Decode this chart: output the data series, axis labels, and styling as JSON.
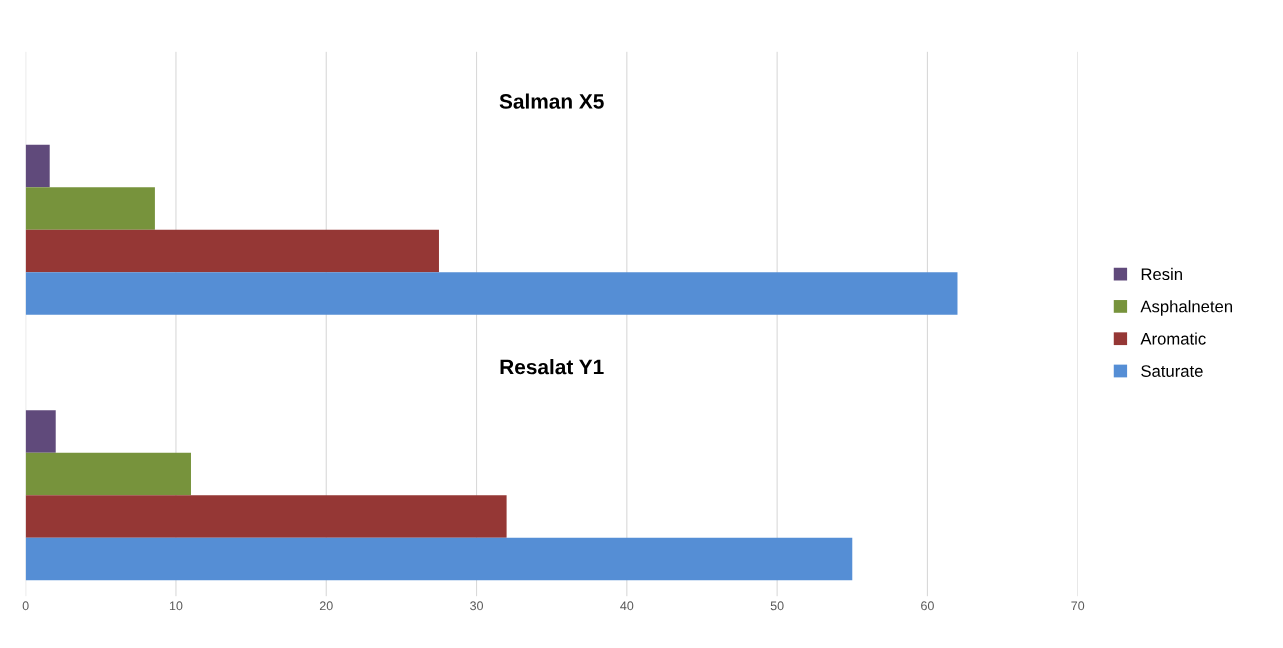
{
  "chart_data": {
    "type": "bar",
    "orientation": "horizontal",
    "categories": [
      "Salman X5",
      "Resalat Y1"
    ],
    "series": [
      {
        "name": "Resin",
        "color": "#604a7b",
        "values": [
          1.6,
          2.0
        ]
      },
      {
        "name": "Asphalneten",
        "color": "#77933c",
        "values": [
          8.6,
          11
        ]
      },
      {
        "name": "Aromatic",
        "color": "#953735",
        "values": [
          27.5,
          32
        ]
      },
      {
        "name": "Saturate",
        "color": "#558ed5",
        "values": [
          62,
          55
        ]
      }
    ],
    "xlim": [
      0,
      70
    ],
    "xticks": [
      0,
      10,
      20,
      30,
      40,
      50,
      60,
      70
    ],
    "grid": "x",
    "legend": "right"
  }
}
